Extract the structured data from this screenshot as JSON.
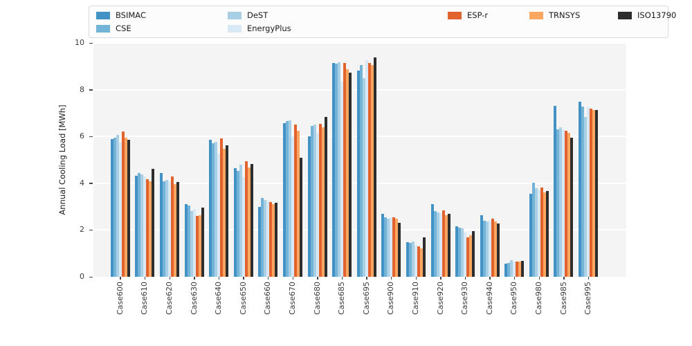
{
  "figure": {
    "plot_background": "#f4f4f4",
    "grid_color": "#ffffff",
    "legend_background": "#fcfcfc",
    "legend_border": "#d9d9d9"
  },
  "chart_data": {
    "type": "bar",
    "title": "",
    "xlabel": "",
    "ylabel": "Annual Cooling Load [MWh]",
    "ylim": [
      0,
      10
    ],
    "yticks": [
      0,
      2,
      4,
      6,
      8,
      10
    ],
    "grid": "horizontal white gridlines on light gray axes background",
    "legend_position": "top outside axes, 5 columns, 2 rows",
    "categories": [
      "Case600",
      "Case610",
      "Case620",
      "Case630",
      "Case640",
      "Case650",
      "Case660",
      "Case670",
      "Case680",
      "Case685",
      "Case695",
      "Case900",
      "Case910",
      "Case920",
      "Case930",
      "Case940",
      "Case950",
      "Case980",
      "Case985",
      "Case995"
    ],
    "series": [
      {
        "name": "BSIMAC",
        "color": "#4292c6",
        "values": [
          5.88,
          4.32,
          4.44,
          3.1,
          5.85,
          4.64,
          3.0,
          6.58,
          6.0,
          9.15,
          8.82,
          2.7,
          1.48,
          3.1,
          2.16,
          2.62,
          0.57,
          3.55,
          7.3,
          7.48
        ]
      },
      {
        "name": "CSE",
        "color": "#73b3d8",
        "values": [
          5.95,
          4.45,
          4.08,
          3.05,
          5.7,
          4.52,
          3.38,
          6.65,
          6.45,
          9.12,
          9.05,
          2.56,
          1.45,
          2.8,
          2.1,
          2.4,
          0.6,
          4.02,
          6.3,
          7.28
        ]
      },
      {
        "name": "DeST",
        "color": "#a9cfe5",
        "values": [
          6.08,
          4.38,
          4.14,
          2.8,
          5.78,
          4.8,
          3.3,
          6.68,
          6.5,
          9.18,
          8.48,
          2.5,
          1.52,
          2.76,
          2.07,
          2.38,
          0.72,
          3.8,
          6.4,
          6.83
        ]
      },
      {
        "name": "EnergyPlus",
        "color": "#d9e8f5",
        "values": [
          5.75,
          4.3,
          4.08,
          2.9,
          5.28,
          4.25,
          3.25,
          6.02,
          6.15,
          8.33,
          9.25,
          2.55,
          1.36,
          2.72,
          1.9,
          2.4,
          0.65,
          3.73,
          6.3,
          7.25
        ]
      },
      {
        "name": "ESP-r",
        "color": "#e2622d",
        "values": [
          6.2,
          4.18,
          4.28,
          2.6,
          5.93,
          4.95,
          3.2,
          6.52,
          6.55,
          9.15,
          9.13,
          2.54,
          1.3,
          2.84,
          1.68,
          2.5,
          0.64,
          3.82,
          6.25,
          7.18
        ]
      },
      {
        "name": "TRNSYS",
        "color": "#fba761",
        "values": [
          5.95,
          4.08,
          3.98,
          2.62,
          5.47,
          4.68,
          3.12,
          6.25,
          6.4,
          8.88,
          9.06,
          2.48,
          1.2,
          2.62,
          1.78,
          2.37,
          0.65,
          3.62,
          6.15,
          7.12
        ]
      },
      {
        "name": "ISO13790",
        "color": "#2d2d2d",
        "values": [
          5.85,
          4.62,
          4.05,
          2.97,
          5.62,
          4.83,
          3.17,
          5.1,
          6.83,
          8.72,
          9.38,
          2.32,
          1.68,
          2.7,
          1.96,
          2.28,
          0.68,
          3.67,
          5.95,
          7.12
        ]
      }
    ]
  }
}
